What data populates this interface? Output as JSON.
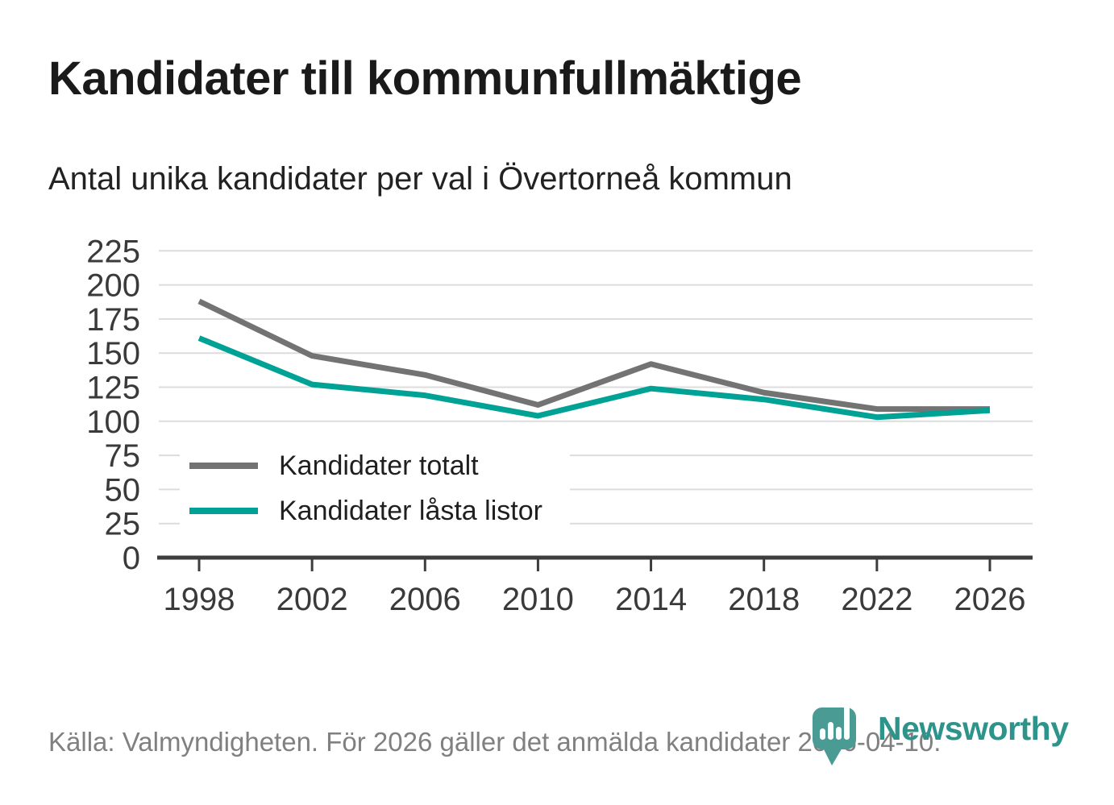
{
  "header": {
    "title": "Kandidater till kommunfullmäktige",
    "subtitle": "Antal unika kandidater per val i Övertorneå kommun"
  },
  "chart_data": {
    "type": "line",
    "title": "Kandidater till kommunfullmäktige",
    "subtitle": "Antal unika kandidater per val i Övertorneå kommun",
    "x": [
      1998,
      2002,
      2006,
      2010,
      2014,
      2018,
      2022,
      2026
    ],
    "series": [
      {
        "name": "Kandidater totalt",
        "color": "#737373",
        "values": [
          188,
          148,
          134,
          112,
          142,
          121,
          109,
          109
        ]
      },
      {
        "name": "Kandidater låsta listor",
        "color": "#00a296",
        "values": [
          161,
          127,
          119,
          104,
          124,
          116,
          103,
          108
        ]
      }
    ],
    "ylim": [
      0,
      225
    ],
    "ytick_step": 25,
    "xlabel": "",
    "ylabel": "",
    "grid": true,
    "legend_position": "inside-bottom-left"
  },
  "footer": {
    "source": "Källa: Valmyndigheten. För 2026 gäller det anmälda kandidater 2026-04-10.",
    "brand": "Newsworthy"
  },
  "colors": {
    "grid": "#dcdcdc",
    "axis": "#3d3d3d",
    "axis_text": "#3a3a3a",
    "title_text": "#1a1a1a",
    "footer_text": "#808080",
    "brand_teal": "#2c948b",
    "brand_icon": "#4a9b94",
    "background": "#ffffff"
  }
}
